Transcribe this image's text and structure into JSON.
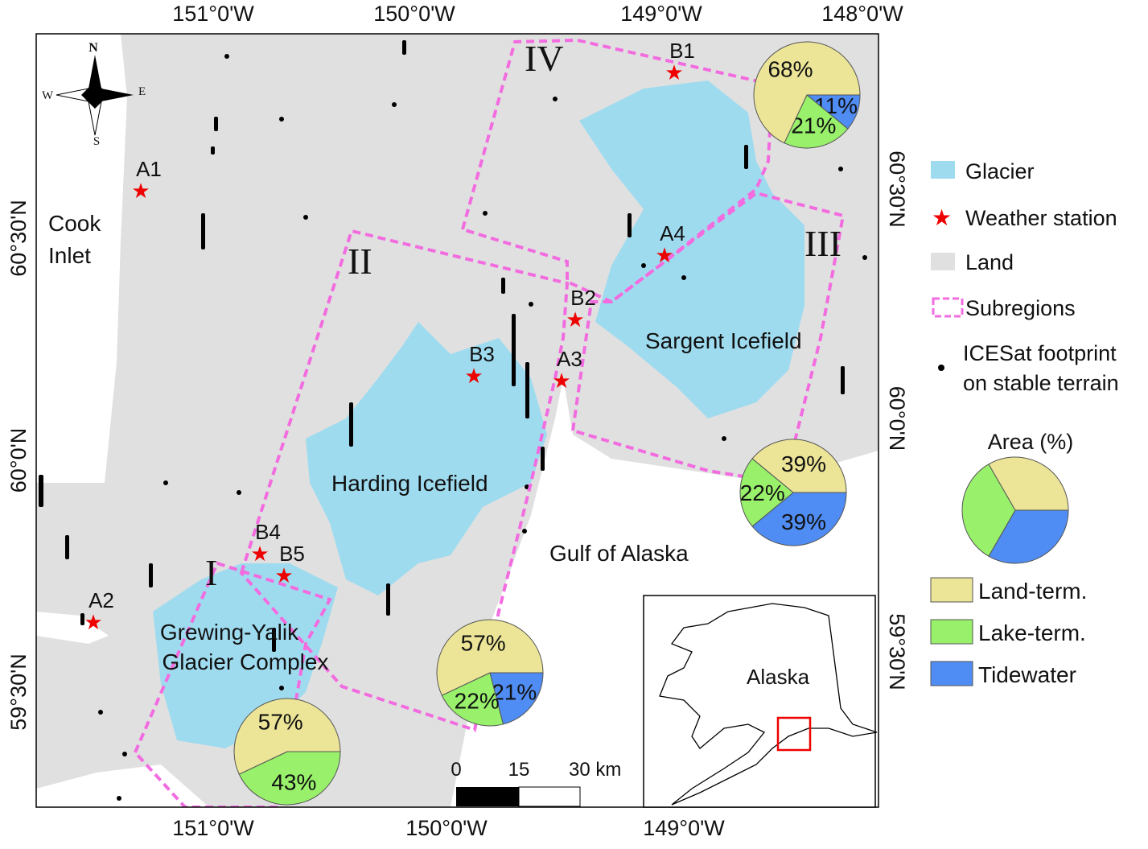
{
  "axes": {
    "top": [
      "151°0'W",
      "150°0'W",
      "149°0'W",
      "148°0'W"
    ],
    "bottom": [
      "151°0'W",
      "150°0'W",
      "149°0'W"
    ],
    "left": [
      "60°30'N",
      "60°0'N",
      "59°30'N"
    ],
    "right": [
      "60°30'N",
      "60°0'N",
      "59°30'N"
    ]
  },
  "compass": {
    "n": "N",
    "e": "E",
    "s": "S",
    "w": "W"
  },
  "place_labels": {
    "cook_inlet": [
      "Cook",
      "Inlet"
    ],
    "harding": "Harding Icefield",
    "sargent": "Sargent Icefield",
    "gulf": "Gulf of Alaska",
    "grewing": [
      "Grewing-Yalik",
      "Glacier Complex"
    ],
    "alaska": "Alaska"
  },
  "subregions": [
    "I",
    "II",
    "III",
    "IV"
  ],
  "stations": [
    "A1",
    "A2",
    "A3",
    "A4",
    "B1",
    "B2",
    "B3",
    "B4",
    "B5"
  ],
  "scale_bar": [
    "0",
    "15",
    "30 km"
  ],
  "legend": {
    "items": [
      "Glacier",
      "Weather station",
      "Land",
      "Subregions",
      [
        "ICESat footprint",
        "on stable terrain"
      ]
    ],
    "area_title": "Area (%)",
    "categories": [
      {
        "name": "Land-term.",
        "color": "#ece597"
      },
      {
        "name": "Lake-term.",
        "color": "#98f06b"
      },
      {
        "name": "Tidewater",
        "color": "#4f8cf3"
      }
    ]
  },
  "pies": [
    {
      "values": [
        57,
        43,
        null
      ],
      "value_labels": [
        "57%",
        "43%",
        null
      ]
    },
    {
      "values": [
        57,
        22,
        21
      ],
      "value_labels": [
        "57%",
        "22%",
        "21%"
      ]
    },
    {
      "values": [
        39,
        22,
        39
      ],
      "value_labels": [
        "39%",
        "22%",
        "39%"
      ]
    },
    {
      "values": [
        68,
        21,
        11
      ],
      "value_labels": [
        "68%",
        "21%",
        "11%"
      ]
    }
  ]
}
